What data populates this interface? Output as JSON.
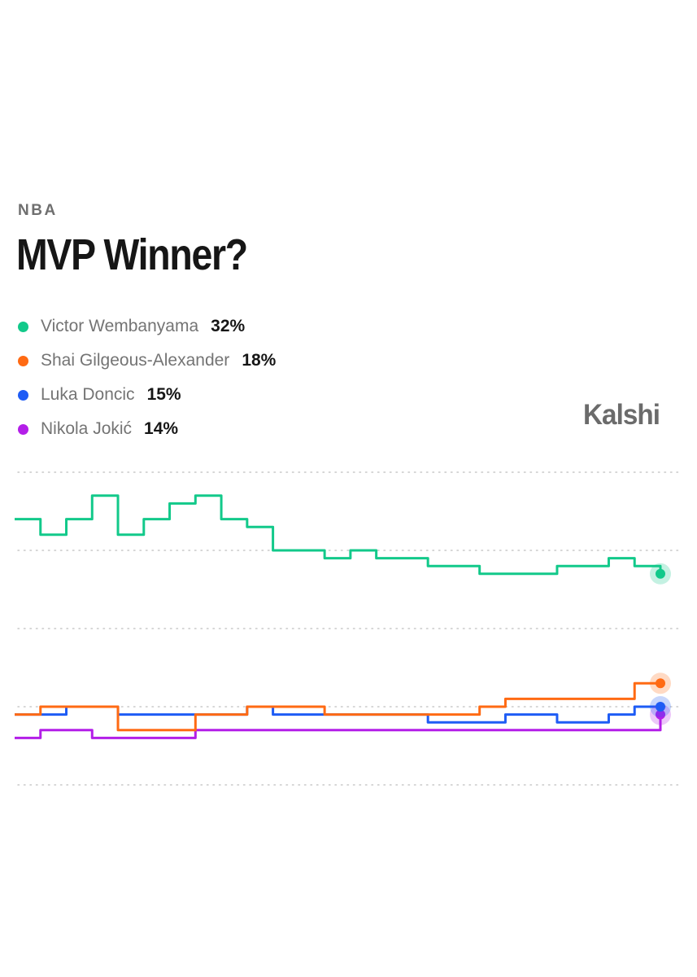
{
  "header": {
    "category": "NBA",
    "title": "MVP Winner?"
  },
  "brand": {
    "name": "Kalshi"
  },
  "legend": [
    {
      "name": "Victor Wembanyama",
      "value": "32%",
      "color": "#12c98a"
    },
    {
      "name": "Shai Gilgeous-Alexander",
      "value": "18%",
      "color": "#ff6a13"
    },
    {
      "name": "Luka Doncic",
      "value": "15%",
      "color": "#1e5cf5"
    },
    {
      "name": "Nikola Jokić",
      "value": "14%",
      "color": "#b31ee8"
    }
  ],
  "chart_data": {
    "type": "line",
    "title": "MVP Winner?",
    "xlabel": "",
    "ylabel": "",
    "x": [
      0,
      1,
      2,
      3,
      4,
      5,
      6,
      7,
      8,
      9,
      10,
      11,
      12,
      13,
      14,
      15,
      16,
      17,
      18,
      19,
      20,
      21,
      22,
      23,
      24,
      25
    ],
    "ylim": [
      5,
      45
    ],
    "grid": true,
    "series": [
      {
        "name": "Victor Wembanyama",
        "color": "#12c98a",
        "values": [
          39,
          37,
          39,
          42,
          37,
          39,
          41,
          42,
          39,
          38,
          35,
          35,
          34,
          35,
          34,
          34,
          33,
          33,
          32,
          32,
          32,
          33,
          33,
          34,
          33,
          32
        ]
      },
      {
        "name": "Shai Gilgeous-Alexander",
        "color": "#ff6a13",
        "values": [
          14,
          15,
          15,
          15,
          12,
          12,
          12,
          14,
          14,
          15,
          15,
          15,
          14,
          14,
          14,
          14,
          14,
          14,
          15,
          16,
          16,
          16,
          16,
          16,
          18,
          18
        ]
      },
      {
        "name": "Luka Doncic",
        "color": "#1e5cf5",
        "values": [
          14,
          14,
          15,
          15,
          14,
          14,
          14,
          14,
          14,
          15,
          14,
          14,
          14,
          14,
          14,
          14,
          13,
          13,
          13,
          14,
          14,
          13,
          13,
          14,
          15,
          15
        ]
      },
      {
        "name": "Nikola Jokić",
        "color": "#b31ee8",
        "values": [
          11,
          12,
          12,
          11,
          11,
          11,
          11,
          12,
          12,
          12,
          12,
          12,
          12,
          12,
          12,
          12,
          12,
          12,
          12,
          12,
          12,
          12,
          12,
          12,
          12,
          14
        ]
      }
    ]
  }
}
